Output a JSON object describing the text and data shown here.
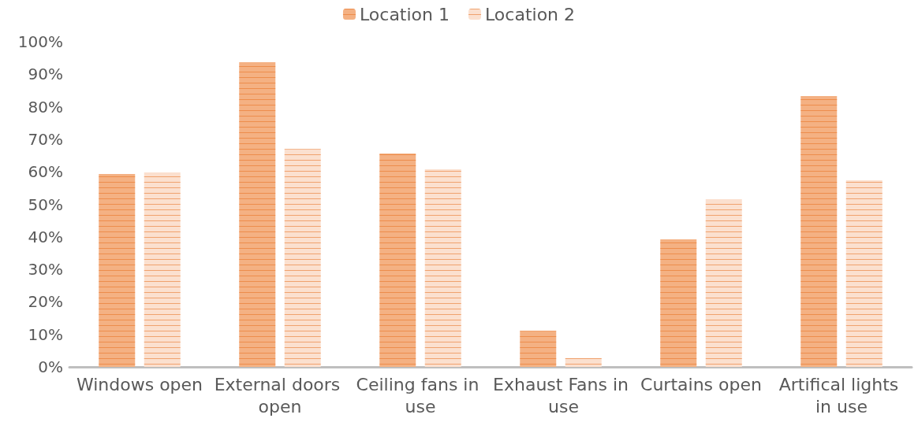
{
  "chart_data": {
    "type": "bar",
    "categories": [
      "Windows open",
      "External doors open",
      "Ceiling fans in use",
      "Exhaust Fans in use",
      "Curtains open",
      "Artifical lights in use"
    ],
    "series": [
      {
        "name": "Location 1",
        "color": "#f4b183",
        "values": [
          59.3,
          93.7,
          65.6,
          11.1,
          39.2,
          83.3
        ]
      },
      {
        "name": "Location 2",
        "color": "#fbe0cf",
        "values": [
          59.8,
          67,
          60.8,
          2.7,
          51.6,
          57.4
        ]
      }
    ],
    "ylim": [
      0,
      100
    ],
    "yticks": [
      {
        "value": 0,
        "label": "0%"
      },
      {
        "value": 10,
        "label": "10%"
      },
      {
        "value": 20,
        "label": "20%"
      },
      {
        "value": 30,
        "label": "30%"
      },
      {
        "value": 40,
        "label": "40%"
      },
      {
        "value": 50,
        "label": "50%"
      },
      {
        "value": 60,
        "label": "60%"
      },
      {
        "value": 70,
        "label": "70%"
      },
      {
        "value": 80,
        "label": "80%"
      },
      {
        "value": 90,
        "label": "90%"
      },
      {
        "value": 100,
        "label": "100%"
      }
    ],
    "grid": false,
    "legend": "top"
  }
}
